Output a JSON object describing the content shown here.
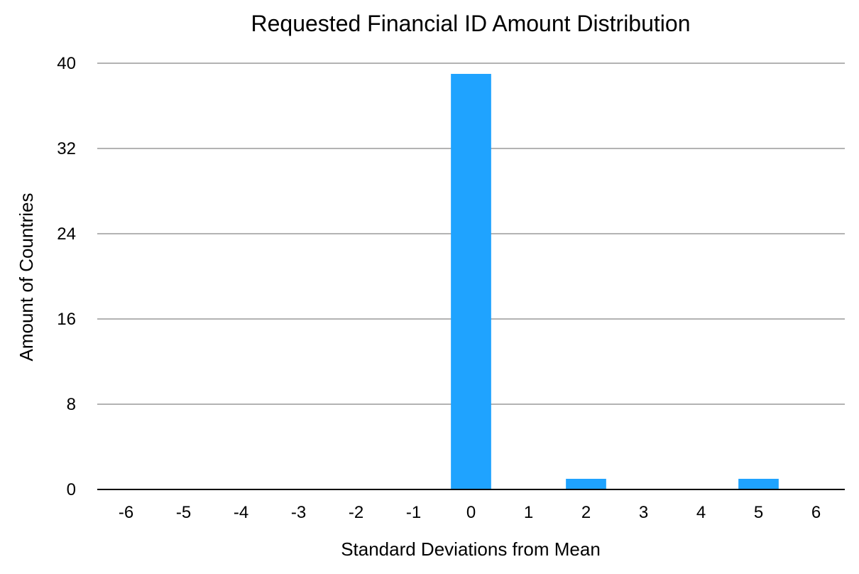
{
  "chart_data": {
    "type": "bar",
    "title": "Requested Financial ID Amount Distribution",
    "xlabel": "Standard Deviations from Mean",
    "ylabel": "Amount of Countries",
    "categories": [
      "-6",
      "-5",
      "-4",
      "-3",
      "-2",
      "-1",
      "0",
      "1",
      "2",
      "3",
      "4",
      "5",
      "6"
    ],
    "values": [
      0,
      0,
      0,
      0,
      0,
      0,
      39,
      0,
      1,
      0,
      0,
      1,
      0
    ],
    "ylim": [
      0,
      40
    ],
    "yticks": [
      "0",
      "8",
      "16",
      "24",
      "32",
      "40"
    ],
    "grid": true,
    "bar_color": "#1fa3ff"
  }
}
